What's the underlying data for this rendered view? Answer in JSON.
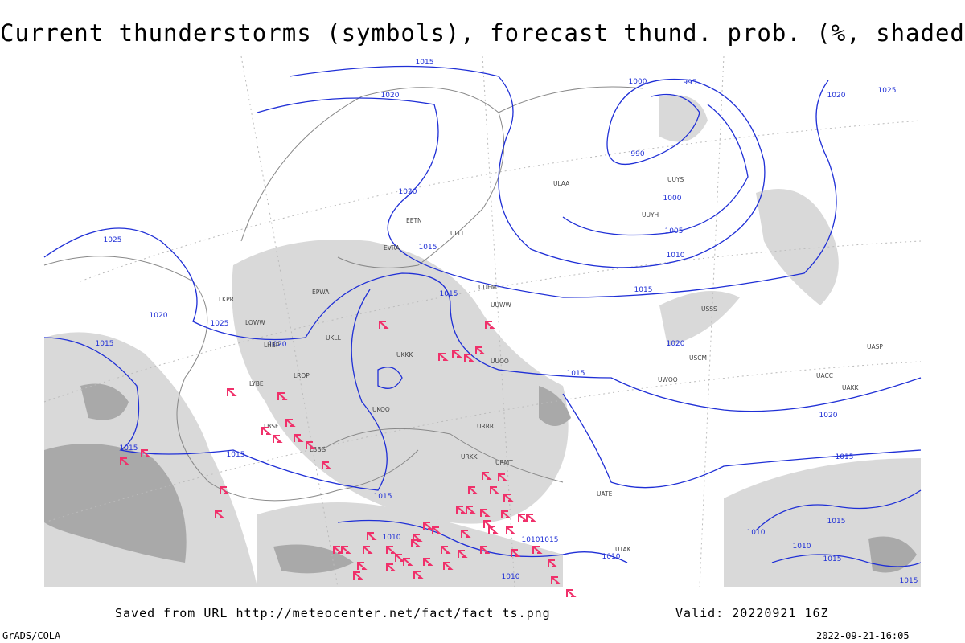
{
  "header": {
    "title": "Current thunderstorms (symbols), forecast thund. prob. (%, shaded)"
  },
  "footer": {
    "source": "Saved from URL http://meteocenter.net/fact/fact_ts.png",
    "valid": "Valid: 20220921 16Z",
    "credit": "GrADS/COLA",
    "timestamp": "2022-09-21-16:05"
  },
  "isobar_labels": [
    "1015",
    "1020",
    "1000",
    "995",
    "990",
    "1000",
    "1005",
    "1010",
    "1015",
    "1020",
    "1025",
    "1025",
    "1020",
    "1025",
    "1020",
    "1015",
    "1015",
    "1015",
    "1015",
    "1015",
    "1015",
    "1020",
    "1015",
    "1020",
    "1020",
    "1015",
    "1010",
    "1015",
    "1015",
    "1010",
    "1010",
    "1010",
    "1015",
    "1010",
    "1010",
    "1015"
  ],
  "stations": [
    "ULAA",
    "UUYS",
    "UUYH",
    "ULLI",
    "UUEM",
    "UUWW",
    "UKKK",
    "UUOO",
    "URRR",
    "URKK",
    "URMT",
    "UATE",
    "USSS",
    "UASP",
    "UACC",
    "UTAK",
    "LBBG",
    "LYBE",
    "LROP",
    "LBSF",
    "LHBP",
    "LOWW",
    "EPWA",
    "EETN",
    "EVRA",
    "LKPR",
    "UKLL",
    "UKOO",
    "USCM",
    "UWOO",
    "UAKK"
  ]
}
